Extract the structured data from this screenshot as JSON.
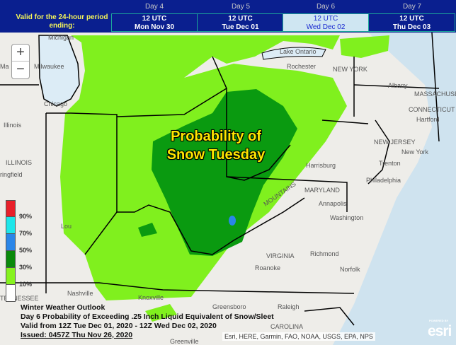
{
  "header": {
    "valid_label": "Valid for the 24-hour period ending:",
    "days": [
      {
        "day": "Day 4",
        "time": "12 UTC",
        "date": "Mon Nov 30",
        "selected": false
      },
      {
        "day": "Day 5",
        "time": "12 UTC",
        "date": "Tue Dec 01",
        "selected": false
      },
      {
        "day": "Day 6",
        "time": "12 UTC",
        "date": "Wed Dec 02",
        "selected": true
      },
      {
        "day": "Day 7",
        "time": "12 UTC",
        "date": "Thu Dec 03",
        "selected": false
      }
    ]
  },
  "zoom": {
    "in": "+",
    "out": "−"
  },
  "legend": {
    "labels": [
      "90%",
      "70%",
      "50%",
      "30%",
      "10%"
    ],
    "colors": [
      "#e8202a",
      "#1ee6ea",
      "#2a86e8",
      "#0a8a0a",
      "#86f21e",
      "#ffffff"
    ]
  },
  "map_title": {
    "line1": "Probability of",
    "line2": "Snow Tuesday"
  },
  "cities": [
    "Milwaukee",
    "Chicago",
    "Illinois",
    "ILLINOIS",
    "ringfield",
    "Lake Ontario",
    "NEW YORK",
    "Albany",
    "MASSACHUSETTS",
    "CONNECTICUT",
    "Hartford",
    "New York",
    "NEW JERSEY",
    "Trenton",
    "Philadelphia",
    "Harrisburg",
    "MARYLAND",
    "Annapolis",
    "Washington",
    "VIRGINIA",
    "Richmond",
    "Norfolk",
    "Roanoke",
    "Nashville",
    "Knoxville",
    "TENNESSEE",
    "Greensboro",
    "Raleigh",
    "Greenville",
    "CAROLINA",
    "MOUNTAINS",
    "Lou",
    "Ma",
    "Michigan",
    "Rochester"
  ],
  "caption": {
    "line1": "Winter Weather Outlook",
    "line2": "Day 6 Probability of Exceeding .25 Inch Liquid Equivalent of Snow/Sleet",
    "line3": "Valid from 12Z Tue Dec 01, 2020 - 12Z Wed Dec 02, 2020",
    "line4": "Issued: 0457Z Thu Nov 26, 2020"
  },
  "attribution": "Esri, HERE, Garmin, FAO, NOAA, USGS, EPA, NPS",
  "esri_logo": {
    "powered": "POWERED BY",
    "brand": "esri"
  }
}
